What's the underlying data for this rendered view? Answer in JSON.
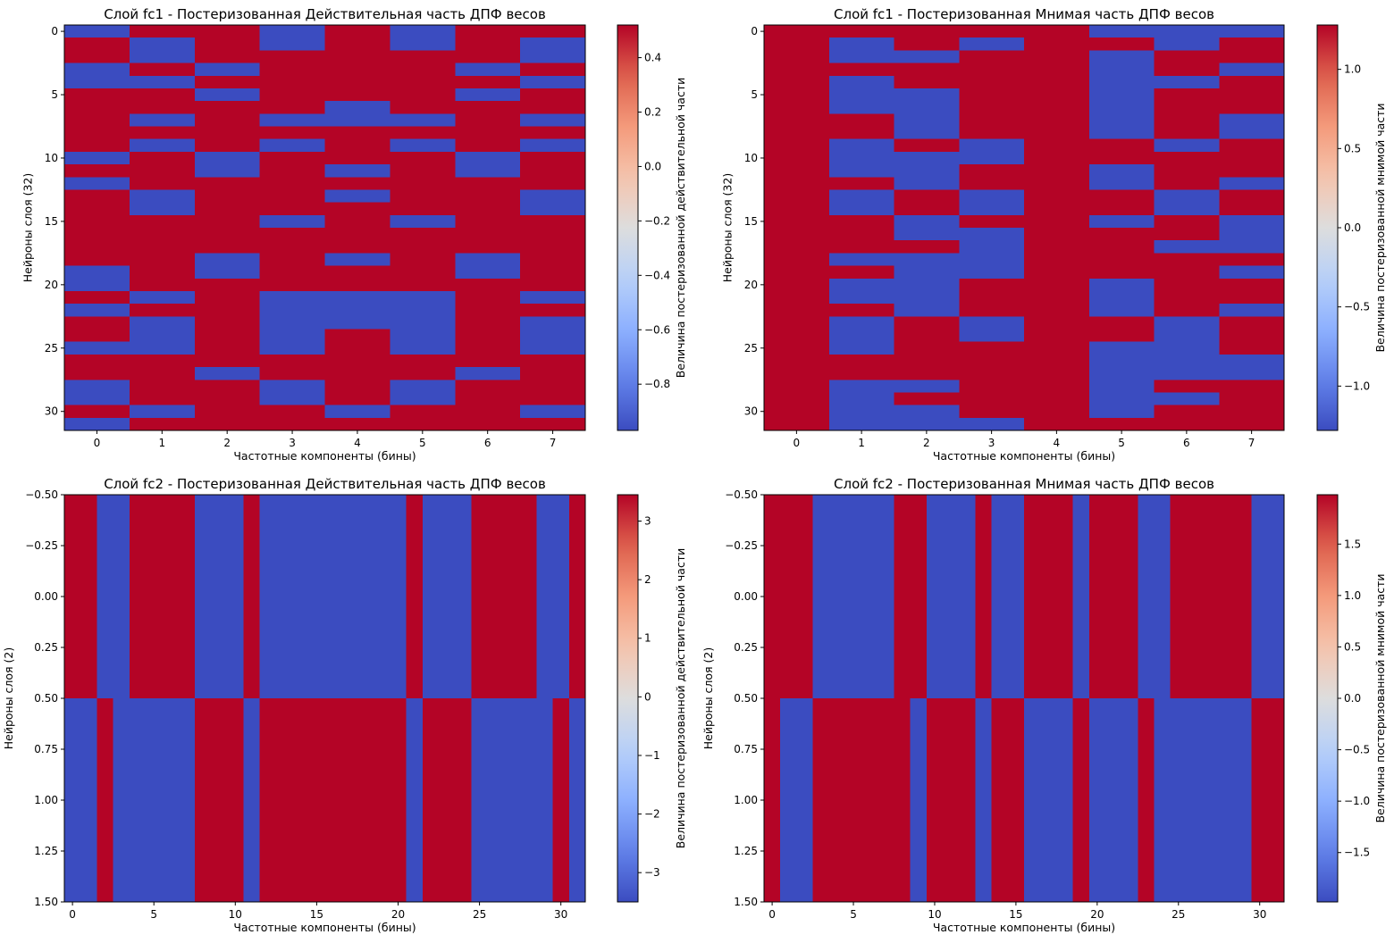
{
  "chart_data": [
    {
      "type": "heatmap",
      "title": "Слой fc1 - Постеризованная Действительная часть ДПФ весов",
      "xlabel": "Частотные компоненты (бины)",
      "ylabel": "Нейроны слоя (32)",
      "colorbar_label": "Величина постеризованной действительной части",
      "colormap": "coolwarm",
      "x_categories": [
        0,
        1,
        2,
        3,
        4,
        5,
        6,
        7
      ],
      "x_ticks": [
        0,
        1,
        2,
        3,
        4,
        5,
        6,
        7
      ],
      "y_ticks": [
        0,
        5,
        10,
        15,
        20,
        25,
        30
      ],
      "vmin": -0.97,
      "vmax": 0.52,
      "colorbar_ticks": [
        0.4,
        0.2,
        0.0,
        -0.2,
        -0.4,
        -0.6,
        -0.8
      ],
      "colorbar_tick_labels": [
        "0.4",
        "0.2",
        "0.0",
        "−0.2",
        "−0.4",
        "−0.6",
        "−0.8"
      ],
      "values": [
        [
          -0.97,
          0.52,
          0.52,
          -0.97,
          0.52,
          -0.97,
          0.52,
          0.52
        ],
        [
          0.52,
          -0.97,
          0.52,
          -0.97,
          0.52,
          -0.97,
          0.52,
          -0.97
        ],
        [
          0.52,
          -0.97,
          0.52,
          0.52,
          0.52,
          0.52,
          0.52,
          -0.97
        ],
        [
          -0.97,
          0.52,
          -0.97,
          0.52,
          0.52,
          0.52,
          -0.97,
          0.52
        ],
        [
          -0.97,
          -0.97,
          0.52,
          0.52,
          0.52,
          0.52,
          0.52,
          -0.97
        ],
        [
          0.52,
          0.52,
          -0.97,
          0.52,
          0.52,
          0.52,
          -0.97,
          0.52
        ],
        [
          0.52,
          0.52,
          0.52,
          0.52,
          -0.97,
          0.52,
          0.52,
          0.52
        ],
        [
          0.52,
          -0.97,
          0.52,
          -0.97,
          -0.97,
          -0.97,
          0.52,
          -0.97
        ],
        [
          0.52,
          0.52,
          0.52,
          0.52,
          0.52,
          0.52,
          0.52,
          0.52
        ],
        [
          0.52,
          -0.97,
          0.52,
          -0.97,
          0.52,
          -0.97,
          0.52,
          -0.97
        ],
        [
          -0.97,
          0.52,
          -0.97,
          0.52,
          0.52,
          0.52,
          -0.97,
          0.52
        ],
        [
          0.52,
          0.52,
          -0.97,
          0.52,
          -0.97,
          0.52,
          -0.97,
          0.52
        ],
        [
          -0.97,
          0.52,
          0.52,
          0.52,
          0.52,
          0.52,
          0.52,
          0.52
        ],
        [
          0.52,
          -0.97,
          0.52,
          0.52,
          -0.97,
          0.52,
          0.52,
          -0.97
        ],
        [
          0.52,
          -0.97,
          0.52,
          0.52,
          0.52,
          0.52,
          0.52,
          -0.97
        ],
        [
          0.52,
          0.52,
          0.52,
          -0.97,
          0.52,
          -0.97,
          0.52,
          0.52
        ],
        [
          0.52,
          0.52,
          0.52,
          0.52,
          0.52,
          0.52,
          0.52,
          0.52
        ],
        [
          0.52,
          0.52,
          0.52,
          0.52,
          0.52,
          0.52,
          0.52,
          0.52
        ],
        [
          0.52,
          0.52,
          -0.97,
          0.52,
          -0.97,
          0.52,
          -0.97,
          0.52
        ],
        [
          -0.97,
          0.52,
          -0.97,
          0.52,
          0.52,
          0.52,
          -0.97,
          0.52
        ],
        [
          -0.97,
          0.52,
          0.52,
          0.52,
          0.52,
          0.52,
          0.52,
          0.52
        ],
        [
          0.52,
          -0.97,
          0.52,
          -0.97,
          -0.97,
          -0.97,
          0.52,
          -0.97
        ],
        [
          -0.97,
          0.52,
          0.52,
          -0.97,
          -0.97,
          -0.97,
          0.52,
          0.52
        ],
        [
          0.52,
          -0.97,
          0.52,
          -0.97,
          -0.97,
          -0.97,
          0.52,
          -0.97
        ],
        [
          0.52,
          -0.97,
          0.52,
          -0.97,
          0.52,
          -0.97,
          0.52,
          -0.97
        ],
        [
          -0.97,
          -0.97,
          0.52,
          -0.97,
          0.52,
          -0.97,
          0.52,
          -0.97
        ],
        [
          0.52,
          0.52,
          0.52,
          0.52,
          0.52,
          0.52,
          0.52,
          0.52
        ],
        [
          0.52,
          0.52,
          -0.97,
          0.52,
          0.52,
          0.52,
          -0.97,
          0.52
        ],
        [
          -0.97,
          0.52,
          0.52,
          -0.97,
          0.52,
          -0.97,
          0.52,
          0.52
        ],
        [
          -0.97,
          0.52,
          0.52,
          -0.97,
          0.52,
          -0.97,
          0.52,
          0.52
        ],
        [
          0.52,
          -0.97,
          0.52,
          0.52,
          -0.97,
          0.52,
          0.52,
          -0.97
        ],
        [
          -0.97,
          0.52,
          0.52,
          0.52,
          0.52,
          0.52,
          0.52,
          0.52
        ]
      ]
    },
    {
      "type": "heatmap",
      "title": "Слой fc1 - Постеризованная Мнимая часть ДПФ весов",
      "xlabel": "Частотные компоненты (бины)",
      "ylabel": "Нейроны слоя (32)",
      "colorbar_label": "Величина постеризованной мнимой части",
      "colormap": "coolwarm",
      "x_categories": [
        0,
        1,
        2,
        3,
        4,
        5,
        6,
        7
      ],
      "x_ticks": [
        0,
        1,
        2,
        3,
        4,
        5,
        6,
        7
      ],
      "y_ticks": [
        0,
        5,
        10,
        15,
        20,
        25,
        30
      ],
      "vmin": -1.28,
      "vmax": 1.28,
      "colorbar_ticks": [
        1.0,
        0.5,
        0.0,
        -0.5,
        -1.0
      ],
      "colorbar_tick_labels": [
        "1.0",
        "0.5",
        "0.0",
        "−0.5",
        "−1.0"
      ],
      "values": [
        [
          1.28,
          1.28,
          1.28,
          1.28,
          1.28,
          -1.28,
          -1.28,
          -1.28
        ],
        [
          1.28,
          -1.28,
          1.28,
          -1.28,
          1.28,
          1.28,
          -1.28,
          1.28
        ],
        [
          1.28,
          -1.28,
          -1.28,
          1.28,
          1.28,
          -1.28,
          1.28,
          1.28
        ],
        [
          1.28,
          1.28,
          1.28,
          1.28,
          1.28,
          -1.28,
          1.28,
          -1.28
        ],
        [
          1.28,
          -1.28,
          1.28,
          1.28,
          1.28,
          -1.28,
          -1.28,
          1.28
        ],
        [
          1.28,
          -1.28,
          -1.28,
          1.28,
          1.28,
          -1.28,
          1.28,
          1.28
        ],
        [
          1.28,
          -1.28,
          -1.28,
          1.28,
          1.28,
          -1.28,
          1.28,
          1.28
        ],
        [
          1.28,
          1.28,
          -1.28,
          1.28,
          1.28,
          -1.28,
          1.28,
          -1.28
        ],
        [
          1.28,
          1.28,
          -1.28,
          1.28,
          1.28,
          -1.28,
          1.28,
          -1.28
        ],
        [
          1.28,
          -1.28,
          1.28,
          -1.28,
          1.28,
          1.28,
          -1.28,
          1.28
        ],
        [
          1.28,
          -1.28,
          -1.28,
          -1.28,
          1.28,
          1.28,
          1.28,
          1.28
        ],
        [
          1.28,
          -1.28,
          -1.28,
          1.28,
          1.28,
          -1.28,
          1.28,
          1.28
        ],
        [
          1.28,
          1.28,
          -1.28,
          1.28,
          1.28,
          -1.28,
          1.28,
          -1.28
        ],
        [
          1.28,
          -1.28,
          1.28,
          -1.28,
          1.28,
          1.28,
          -1.28,
          1.28
        ],
        [
          1.28,
          -1.28,
          1.28,
          -1.28,
          1.28,
          1.28,
          -1.28,
          1.28
        ],
        [
          1.28,
          1.28,
          -1.28,
          1.28,
          1.28,
          -1.28,
          1.28,
          -1.28
        ],
        [
          1.28,
          1.28,
          -1.28,
          -1.28,
          1.28,
          1.28,
          1.28,
          -1.28
        ],
        [
          1.28,
          1.28,
          1.28,
          -1.28,
          1.28,
          1.28,
          -1.28,
          -1.28
        ],
        [
          1.28,
          -1.28,
          -1.28,
          -1.28,
          1.28,
          1.28,
          1.28,
          1.28
        ],
        [
          1.28,
          1.28,
          -1.28,
          -1.28,
          1.28,
          1.28,
          1.28,
          -1.28
        ],
        [
          1.28,
          -1.28,
          -1.28,
          1.28,
          1.28,
          -1.28,
          1.28,
          1.28
        ],
        [
          1.28,
          -1.28,
          -1.28,
          1.28,
          1.28,
          -1.28,
          1.28,
          1.28
        ],
        [
          1.28,
          1.28,
          -1.28,
          1.28,
          1.28,
          -1.28,
          1.28,
          -1.28
        ],
        [
          1.28,
          -1.28,
          1.28,
          -1.28,
          1.28,
          1.28,
          -1.28,
          1.28
        ],
        [
          1.28,
          -1.28,
          1.28,
          -1.28,
          1.28,
          1.28,
          -1.28,
          1.28
        ],
        [
          1.28,
          -1.28,
          1.28,
          1.28,
          1.28,
          -1.28,
          -1.28,
          1.28
        ],
        [
          1.28,
          1.28,
          1.28,
          1.28,
          1.28,
          -1.28,
          -1.28,
          -1.28
        ],
        [
          1.28,
          1.28,
          1.28,
          1.28,
          1.28,
          -1.28,
          -1.28,
          -1.28
        ],
        [
          1.28,
          -1.28,
          -1.28,
          1.28,
          1.28,
          -1.28,
          1.28,
          1.28
        ],
        [
          1.28,
          -1.28,
          1.28,
          1.28,
          1.28,
          -1.28,
          -1.28,
          1.28
        ],
        [
          1.28,
          -1.28,
          -1.28,
          1.28,
          1.28,
          -1.28,
          1.28,
          1.28
        ],
        [
          1.28,
          -1.28,
          -1.28,
          -1.28,
          1.28,
          1.28,
          1.28,
          1.28
        ]
      ]
    },
    {
      "type": "heatmap",
      "title": "Слой fc2 - Постеризованная Действительная часть ДПФ весов",
      "xlabel": "Частотные компоненты (бины)",
      "ylabel": "Нейроны слоя (2)",
      "colorbar_label": "Величина постеризованной действительной части",
      "colormap": "coolwarm",
      "x_categories": [
        0,
        1,
        2,
        3,
        4,
        5,
        6,
        7,
        8,
        9,
        10,
        11,
        12,
        13,
        14,
        15,
        16,
        17,
        18,
        19,
        20,
        21,
        22,
        23,
        24,
        25,
        26,
        27,
        28,
        29,
        30,
        31
      ],
      "x_ticks": [
        0,
        5,
        10,
        15,
        20,
        25,
        30
      ],
      "ylim": [
        1.5,
        -0.5
      ],
      "y_ticks": [
        -0.5,
        -0.25,
        0.0,
        0.25,
        0.5,
        0.75,
        1.0,
        1.25,
        1.5
      ],
      "y_tick_labels": [
        "−0.50",
        "−0.25",
        "0.00",
        "0.25",
        "0.50",
        "0.75",
        "1.00",
        "1.25",
        "1.50"
      ],
      "vmin": -3.5,
      "vmax": 3.45,
      "colorbar_ticks": [
        3,
        2,
        1,
        0,
        -1,
        -2,
        -3
      ],
      "colorbar_tick_labels": [
        "3",
        "2",
        "1",
        "0",
        "−1",
        "−2",
        "−3"
      ],
      "values": [
        [
          3.45,
          3.45,
          -3.5,
          -3.5,
          3.45,
          3.45,
          3.45,
          3.45,
          -3.5,
          -3.5,
          -3.5,
          3.45,
          -3.5,
          -3.5,
          -3.5,
          -3.5,
          -3.5,
          -3.5,
          -3.5,
          -3.5,
          -3.5,
          3.45,
          -3.5,
          -3.5,
          -3.5,
          3.45,
          3.45,
          3.45,
          3.45,
          -3.5,
          -3.5,
          3.45
        ],
        [
          -3.5,
          -3.5,
          3.45,
          -3.5,
          -3.5,
          -3.5,
          -3.5,
          -3.5,
          3.45,
          3.45,
          3.45,
          -3.5,
          3.45,
          3.45,
          3.45,
          3.45,
          3.45,
          3.45,
          3.45,
          3.45,
          3.45,
          -3.5,
          3.45,
          3.45,
          3.45,
          -3.5,
          -3.5,
          -3.5,
          -3.5,
          -3.5,
          3.45,
          -3.5
        ]
      ]
    },
    {
      "type": "heatmap",
      "title": "Слой fc2 - Постеризованная Мнимая часть ДПФ весов",
      "xlabel": "Частотные компоненты (бины)",
      "ylabel": "Нейроны слоя (2)",
      "colorbar_label": "Величина постеризованной мнимой части",
      "colormap": "coolwarm",
      "x_categories": [
        0,
        1,
        2,
        3,
        4,
        5,
        6,
        7,
        8,
        9,
        10,
        11,
        12,
        13,
        14,
        15,
        16,
        17,
        18,
        19,
        20,
        21,
        22,
        23,
        24,
        25,
        26,
        27,
        28,
        29,
        30,
        31
      ],
      "x_ticks": [
        0,
        5,
        10,
        15,
        20,
        25,
        30
      ],
      "ylim": [
        1.5,
        -0.5
      ],
      "y_ticks": [
        -0.5,
        -0.25,
        0.0,
        0.25,
        0.5,
        0.75,
        1.0,
        1.25,
        1.5
      ],
      "y_tick_labels": [
        "−0.50",
        "−0.25",
        "0.00",
        "0.25",
        "0.50",
        "0.75",
        "1.00",
        "1.25",
        "1.50"
      ],
      "vmin": -1.98,
      "vmax": 1.98,
      "colorbar_ticks": [
        1.5,
        1.0,
        0.5,
        0.0,
        -0.5,
        -1.0,
        -1.5
      ],
      "colorbar_tick_labels": [
        "1.5",
        "1.0",
        "0.5",
        "0.0",
        "−0.5",
        "−1.0",
        "−1.5"
      ],
      "values": [
        [
          1.98,
          1.98,
          1.98,
          -1.98,
          -1.98,
          -1.98,
          -1.98,
          -1.98,
          1.98,
          1.98,
          -1.98,
          -1.98,
          -1.98,
          1.98,
          -1.98,
          -1.98,
          1.98,
          1.98,
          1.98,
          -1.98,
          1.98,
          1.98,
          1.98,
          -1.98,
          -1.98,
          1.98,
          1.98,
          1.98,
          1.98,
          1.98,
          -1.98,
          -1.98
        ],
        [
          1.98,
          -1.98,
          -1.98,
          1.98,
          1.98,
          1.98,
          1.98,
          1.98,
          1.98,
          -1.98,
          1.98,
          1.98,
          1.98,
          -1.98,
          1.98,
          1.98,
          -1.98,
          -1.98,
          -1.98,
          1.98,
          -1.98,
          -1.98,
          -1.98,
          1.98,
          -1.98,
          -1.98,
          -1.98,
          -1.98,
          -1.98,
          -1.98,
          1.98,
          1.98
        ]
      ]
    }
  ]
}
